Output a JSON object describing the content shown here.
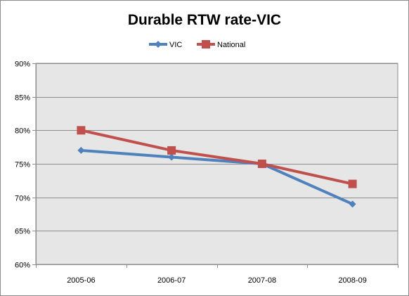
{
  "chart_data": {
    "type": "line",
    "title": "Durable RTW rate-VIC",
    "xlabel": "",
    "ylabel": "",
    "categories": [
      "2005-06",
      "2006-07",
      "2007-08",
      "2008-09"
    ],
    "ylim": [
      0.6,
      0.9
    ],
    "yticks": [
      0.6,
      0.65,
      0.7,
      0.75,
      0.8,
      0.85,
      0.9
    ],
    "ytick_labels": [
      "60%",
      "65%",
      "70%",
      "75%",
      "80%",
      "85%",
      "90%"
    ],
    "grid": true,
    "legend_position": "top",
    "plot_background": "#e6e6e6",
    "series": [
      {
        "name": "VIC",
        "values": [
          0.77,
          0.76,
          0.75,
          0.69
        ],
        "color": "#4f81bd",
        "marker": "diamond"
      },
      {
        "name": "National",
        "values": [
          0.8,
          0.77,
          0.75,
          0.72
        ],
        "color": "#c0504d",
        "marker": "square"
      }
    ]
  }
}
